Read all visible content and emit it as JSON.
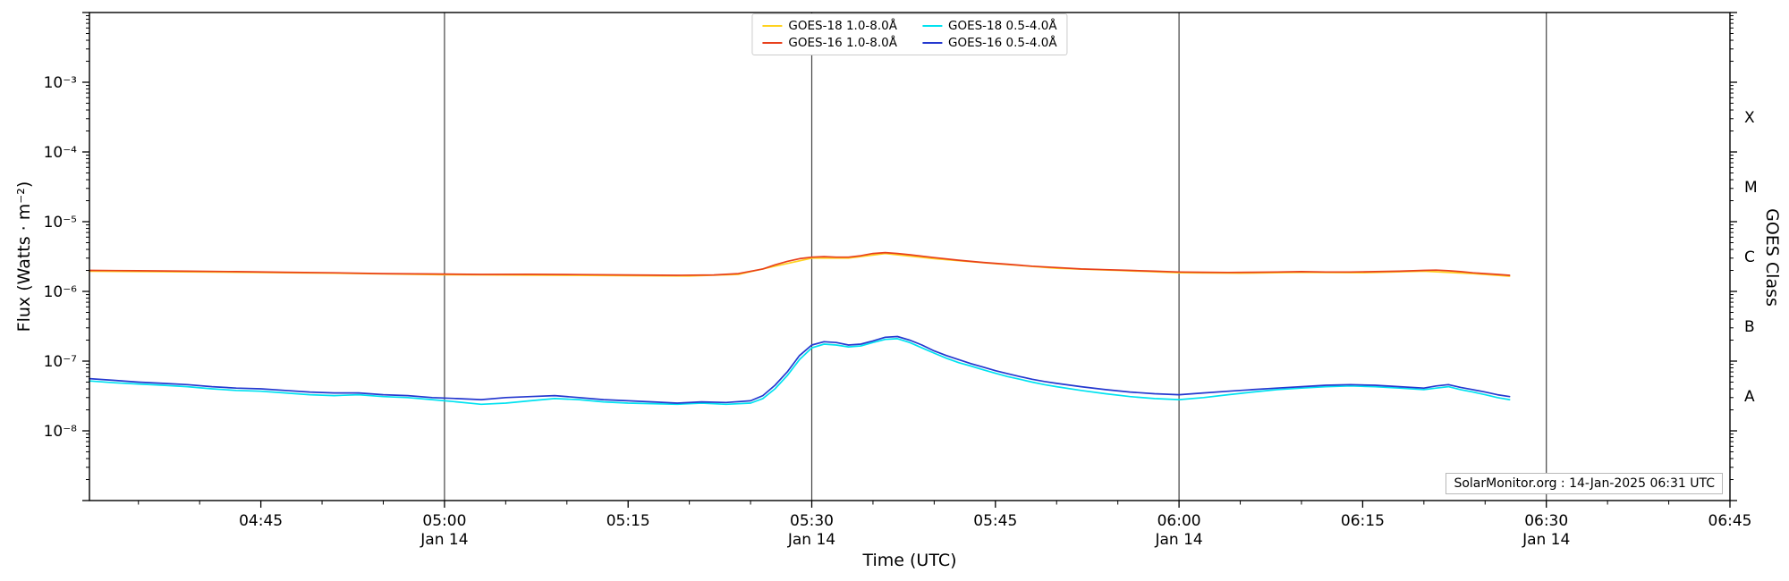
{
  "figure": {
    "background": "#ffffff",
    "annotation": "SolarMonitor.org : 14-Jan-2025 06:31 UTC"
  },
  "axes": {
    "xlabel": "Time (UTC)",
    "ylabel": "Flux (Watts · m⁻²)",
    "right_label": "GOES Class",
    "axis_color": "#000000",
    "gridline_color": "#444444"
  },
  "legend": {
    "entries": [
      {
        "label": "GOES-18 1.0-8.0Å",
        "color": "#ffd21f"
      },
      {
        "label": "GOES-18 0.5-4.0Å",
        "color": "#00e2f0"
      },
      {
        "label": "GOES-16 1.0-8.0Å",
        "color": "#e8401c"
      },
      {
        "label": "GOES-16 0.5-4.0Å",
        "color": "#2438cf"
      }
    ]
  },
  "chart_data": {
    "type": "line",
    "title": "",
    "x_unit": "minutes since 00:00 UTC, 14-Jan-2025",
    "xlim": [
      271,
      405
    ],
    "ylim": [
      1e-09,
      0.01
    ],
    "grid": "vertical-only",
    "legend_position": "top-center",
    "xticks": [
      {
        "t": 285,
        "label": "04:45",
        "sublabel": ""
      },
      {
        "t": 300,
        "label": "05:00",
        "sublabel": "Jan 14"
      },
      {
        "t": 315,
        "label": "05:15",
        "sublabel": ""
      },
      {
        "t": 330,
        "label": "05:30",
        "sublabel": "Jan 14"
      },
      {
        "t": 345,
        "label": "05:45",
        "sublabel": ""
      },
      {
        "t": 360,
        "label": "06:00",
        "sublabel": "Jan 14"
      },
      {
        "t": 375,
        "label": "06:15",
        "sublabel": ""
      },
      {
        "t": 390,
        "label": "06:30",
        "sublabel": "Jan 14"
      },
      {
        "t": 405,
        "label": "06:45",
        "sublabel": ""
      }
    ],
    "x_minor_step": 5,
    "vertical_gridlines_t": [
      300,
      330,
      360,
      390
    ],
    "yticks": [
      {
        "exp": -3,
        "label": "10⁻³"
      },
      {
        "exp": -4,
        "label": "10⁻⁴"
      },
      {
        "exp": -5,
        "label": "10⁻⁵"
      },
      {
        "exp": -6,
        "label": "10⁻⁶"
      },
      {
        "exp": -7,
        "label": "10⁻⁷"
      },
      {
        "exp": -8,
        "label": "10⁻⁸"
      }
    ],
    "goes_classes": [
      {
        "label": "X",
        "log10_flux": -3.5
      },
      {
        "label": "M",
        "log10_flux": -4.5
      },
      {
        "label": "C",
        "log10_flux": -5.5
      },
      {
        "label": "B",
        "log10_flux": -6.5
      },
      {
        "label": "A",
        "log10_flux": -7.5
      }
    ],
    "series": [
      {
        "name": "GOES-18 1.0-8.0Å",
        "color": "#ffd21f",
        "points": [
          [
            271,
            1.95e-06
          ],
          [
            280,
            1.9e-06
          ],
          [
            290,
            1.83e-06
          ],
          [
            300,
            1.73e-06
          ],
          [
            310,
            1.7e-06
          ],
          [
            320,
            1.66e-06
          ],
          [
            324,
            1.75e-06
          ],
          [
            327,
            2.3e-06
          ],
          [
            330,
            3e-06
          ],
          [
            333,
            3e-06
          ],
          [
            336,
            3.5e-06
          ],
          [
            340,
            2.95e-06
          ],
          [
            345,
            2.5e-06
          ],
          [
            350,
            2.15e-06
          ],
          [
            355,
            2e-06
          ],
          [
            360,
            1.85e-06
          ],
          [
            365,
            1.82e-06
          ],
          [
            370,
            1.87e-06
          ],
          [
            375,
            1.85e-06
          ],
          [
            380,
            1.95e-06
          ],
          [
            384,
            1.8e-06
          ],
          [
            387,
            1.65e-06
          ]
        ]
      },
      {
        "name": "GOES-16 1.0-8.0Å",
        "color": "#e8401c",
        "points": [
          [
            271,
            2e-06
          ],
          [
            275,
            1.98e-06
          ],
          [
            279,
            1.95e-06
          ],
          [
            283,
            1.92e-06
          ],
          [
            287,
            1.88e-06
          ],
          [
            291,
            1.85e-06
          ],
          [
            295,
            1.8e-06
          ],
          [
            299,
            1.78e-06
          ],
          [
            303,
            1.75e-06
          ],
          [
            307,
            1.76e-06
          ],
          [
            311,
            1.74e-06
          ],
          [
            315,
            1.72e-06
          ],
          [
            319,
            1.7e-06
          ],
          [
            322,
            1.72e-06
          ],
          [
            324,
            1.8e-06
          ],
          [
            326,
            2.1e-06
          ],
          [
            327,
            2.4e-06
          ],
          [
            328,
            2.7e-06
          ],
          [
            329,
            2.95e-06
          ],
          [
            330,
            3.1e-06
          ],
          [
            331,
            3.15e-06
          ],
          [
            332,
            3.1e-06
          ],
          [
            333,
            3.1e-06
          ],
          [
            334,
            3.25e-06
          ],
          [
            335,
            3.5e-06
          ],
          [
            336,
            3.6e-06
          ],
          [
            337,
            3.5e-06
          ],
          [
            338,
            3.35e-06
          ],
          [
            340,
            3.05e-06
          ],
          [
            342,
            2.8e-06
          ],
          [
            344,
            2.6e-06
          ],
          [
            346,
            2.45e-06
          ],
          [
            348,
            2.3e-06
          ],
          [
            350,
            2.2e-06
          ],
          [
            352,
            2.1e-06
          ],
          [
            354,
            2.05e-06
          ],
          [
            356,
            2e-06
          ],
          [
            358,
            1.95e-06
          ],
          [
            360,
            1.9e-06
          ],
          [
            362,
            1.88e-06
          ],
          [
            364,
            1.87e-06
          ],
          [
            366,
            1.88e-06
          ],
          [
            368,
            1.9e-06
          ],
          [
            370,
            1.92e-06
          ],
          [
            372,
            1.9e-06
          ],
          [
            374,
            1.9e-06
          ],
          [
            376,
            1.92e-06
          ],
          [
            378,
            1.95e-06
          ],
          [
            380,
            2e-06
          ],
          [
            381,
            2.02e-06
          ],
          [
            382,
            1.98e-06
          ],
          [
            383,
            1.92e-06
          ],
          [
            384,
            1.85e-06
          ],
          [
            385,
            1.8e-06
          ],
          [
            386,
            1.75e-06
          ],
          [
            387,
            1.7e-06
          ]
        ]
      },
      {
        "name": "GOES-18 0.5-4.0Å",
        "color": "#00e2f0",
        "points": [
          [
            271,
            5.2e-08
          ],
          [
            273,
            4.9e-08
          ],
          [
            275,
            4.7e-08
          ],
          [
            277,
            4.5e-08
          ],
          [
            279,
            4.3e-08
          ],
          [
            281,
            4e-08
          ],
          [
            283,
            3.8e-08
          ],
          [
            285,
            3.7e-08
          ],
          [
            287,
            3.5e-08
          ],
          [
            289,
            3.3e-08
          ],
          [
            291,
            3.2e-08
          ],
          [
            293,
            3.3e-08
          ],
          [
            295,
            3.1e-08
          ],
          [
            297,
            3e-08
          ],
          [
            299,
            2.8e-08
          ],
          [
            301,
            2.6e-08
          ],
          [
            303,
            2.4e-08
          ],
          [
            305,
            2.5e-08
          ],
          [
            307,
            2.7e-08
          ],
          [
            309,
            2.9e-08
          ],
          [
            311,
            2.8e-08
          ],
          [
            313,
            2.6e-08
          ],
          [
            315,
            2.5e-08
          ],
          [
            317,
            2.45e-08
          ],
          [
            319,
            2.4e-08
          ],
          [
            321,
            2.5e-08
          ],
          [
            323,
            2.4e-08
          ],
          [
            325,
            2.5e-08
          ],
          [
            326,
            2.9e-08
          ],
          [
            327,
            4e-08
          ],
          [
            328,
            6.2e-08
          ],
          [
            329,
            1.05e-07
          ],
          [
            330,
            1.55e-07
          ],
          [
            331,
            1.75e-07
          ],
          [
            332,
            1.7e-07
          ],
          [
            333,
            1.6e-07
          ],
          [
            334,
            1.65e-07
          ],
          [
            335,
            1.85e-07
          ],
          [
            336,
            2.05e-07
          ],
          [
            337,
            2.1e-07
          ],
          [
            338,
            1.85e-07
          ],
          [
            339,
            1.55e-07
          ],
          [
            340,
            1.3e-07
          ],
          [
            341,
            1.1e-07
          ],
          [
            342,
            9.5e-08
          ],
          [
            343,
            8.5e-08
          ],
          [
            344,
            7.5e-08
          ],
          [
            345,
            6.7e-08
          ],
          [
            346,
            6e-08
          ],
          [
            347,
            5.5e-08
          ],
          [
            348,
            5e-08
          ],
          [
            349,
            4.6e-08
          ],
          [
            350,
            4.3e-08
          ],
          [
            352,
            3.8e-08
          ],
          [
            354,
            3.4e-08
          ],
          [
            356,
            3.1e-08
          ],
          [
            358,
            2.9e-08
          ],
          [
            360,
            2.8e-08
          ],
          [
            362,
            3e-08
          ],
          [
            364,
            3.3e-08
          ],
          [
            366,
            3.6e-08
          ],
          [
            368,
            3.9e-08
          ],
          [
            370,
            4.1e-08
          ],
          [
            372,
            4.3e-08
          ],
          [
            374,
            4.4e-08
          ],
          [
            376,
            4.3e-08
          ],
          [
            378,
            4.1e-08
          ],
          [
            380,
            3.9e-08
          ],
          [
            381,
            4.1e-08
          ],
          [
            382,
            4.3e-08
          ],
          [
            383,
            3.9e-08
          ],
          [
            384,
            3.6e-08
          ],
          [
            385,
            3.3e-08
          ],
          [
            386,
            3e-08
          ],
          [
            387,
            2.8e-08
          ]
        ]
      },
      {
        "name": "GOES-16 0.5-4.0Å",
        "color": "#2438cf",
        "points": [
          [
            271,
            5.6e-08
          ],
          [
            273,
            5.3e-08
          ],
          [
            275,
            5e-08
          ],
          [
            277,
            4.8e-08
          ],
          [
            279,
            4.6e-08
          ],
          [
            281,
            4.3e-08
          ],
          [
            283,
            4.1e-08
          ],
          [
            285,
            4e-08
          ],
          [
            287,
            3.8e-08
          ],
          [
            289,
            3.6e-08
          ],
          [
            291,
            3.5e-08
          ],
          [
            293,
            3.5e-08
          ],
          [
            295,
            3.3e-08
          ],
          [
            297,
            3.2e-08
          ],
          [
            299,
            3e-08
          ],
          [
            301,
            2.9e-08
          ],
          [
            303,
            2.8e-08
          ],
          [
            305,
            3e-08
          ],
          [
            307,
            3.1e-08
          ],
          [
            309,
            3.2e-08
          ],
          [
            311,
            3e-08
          ],
          [
            313,
            2.8e-08
          ],
          [
            315,
            2.7e-08
          ],
          [
            317,
            2.6e-08
          ],
          [
            319,
            2.5e-08
          ],
          [
            321,
            2.6e-08
          ],
          [
            323,
            2.55e-08
          ],
          [
            325,
            2.7e-08
          ],
          [
            326,
            3.2e-08
          ],
          [
            327,
            4.5e-08
          ],
          [
            328,
            7e-08
          ],
          [
            329,
            1.2e-07
          ],
          [
            330,
            1.7e-07
          ],
          [
            331,
            1.9e-07
          ],
          [
            332,
            1.85e-07
          ],
          [
            333,
            1.7e-07
          ],
          [
            334,
            1.75e-07
          ],
          [
            335,
            1.95e-07
          ],
          [
            336,
            2.2e-07
          ],
          [
            337,
            2.25e-07
          ],
          [
            338,
            2e-07
          ],
          [
            339,
            1.7e-07
          ],
          [
            340,
            1.4e-07
          ],
          [
            341,
            1.2e-07
          ],
          [
            342,
            1.05e-07
          ],
          [
            343,
            9.2e-08
          ],
          [
            344,
            8.2e-08
          ],
          [
            345,
            7.3e-08
          ],
          [
            346,
            6.6e-08
          ],
          [
            347,
            6e-08
          ],
          [
            348,
            5.5e-08
          ],
          [
            349,
            5.1e-08
          ],
          [
            350,
            4.8e-08
          ],
          [
            352,
            4.3e-08
          ],
          [
            354,
            3.9e-08
          ],
          [
            356,
            3.6e-08
          ],
          [
            358,
            3.4e-08
          ],
          [
            360,
            3.3e-08
          ],
          [
            362,
            3.5e-08
          ],
          [
            364,
            3.7e-08
          ],
          [
            366,
            3.9e-08
          ],
          [
            368,
            4.1e-08
          ],
          [
            370,
            4.3e-08
          ],
          [
            372,
            4.5e-08
          ],
          [
            374,
            4.6e-08
          ],
          [
            376,
            4.5e-08
          ],
          [
            378,
            4.3e-08
          ],
          [
            380,
            4.1e-08
          ],
          [
            381,
            4.4e-08
          ],
          [
            382,
            4.6e-08
          ],
          [
            383,
            4.2e-08
          ],
          [
            384,
            3.9e-08
          ],
          [
            385,
            3.6e-08
          ],
          [
            386,
            3.3e-08
          ],
          [
            387,
            3.1e-08
          ]
        ]
      }
    ]
  }
}
